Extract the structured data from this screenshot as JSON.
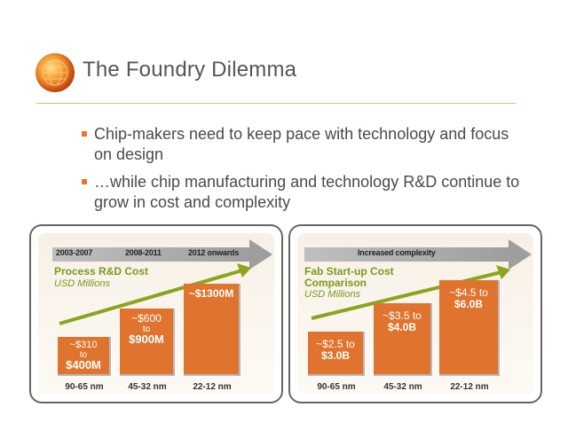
{
  "header": {
    "title": "The Foundry Dilemma"
  },
  "bullets": [
    "Chip-makers need to keep pace with technology and focus on design",
    "…while chip manufacturing and technology R&D continue to grow in cost and complexity"
  ],
  "left_panel": {
    "timeline": [
      "2003-2007",
      "2008-2011",
      "2012 onwards"
    ],
    "chart_title": "Process R&D Cost",
    "chart_subtitle": "USD Millions",
    "bars": [
      {
        "category": "90-65 nm",
        "line1": "~$310",
        "line2": "to",
        "line3": "$400M"
      },
      {
        "category": "45-32 nm",
        "line1": "~$600",
        "line2": "to",
        "line3": "$900M"
      },
      {
        "category": "22-12 nm",
        "line1": "~$1300M",
        "line2": "",
        "line3": ""
      }
    ]
  },
  "right_panel": {
    "band_label": "Increased complexity",
    "chart_title_line1": "Fab Start-up Cost",
    "chart_title_line2": "Comparison",
    "chart_subtitle": "USD Millions",
    "bars": [
      {
        "category": "90-65 nm",
        "line1": "~$2.5 to",
        "line2": "$3.0B"
      },
      {
        "category": "45-32 nm",
        "line1": "~$3.5 to",
        "line2": "$4.0B"
      },
      {
        "category": "22-12 nm",
        "line1": "~$4.5 to",
        "line2": "$6.0B"
      }
    ]
  },
  "colors": {
    "accent": "#e0742e",
    "green": "#7a9a1a",
    "text": "#4a4a4a"
  }
}
